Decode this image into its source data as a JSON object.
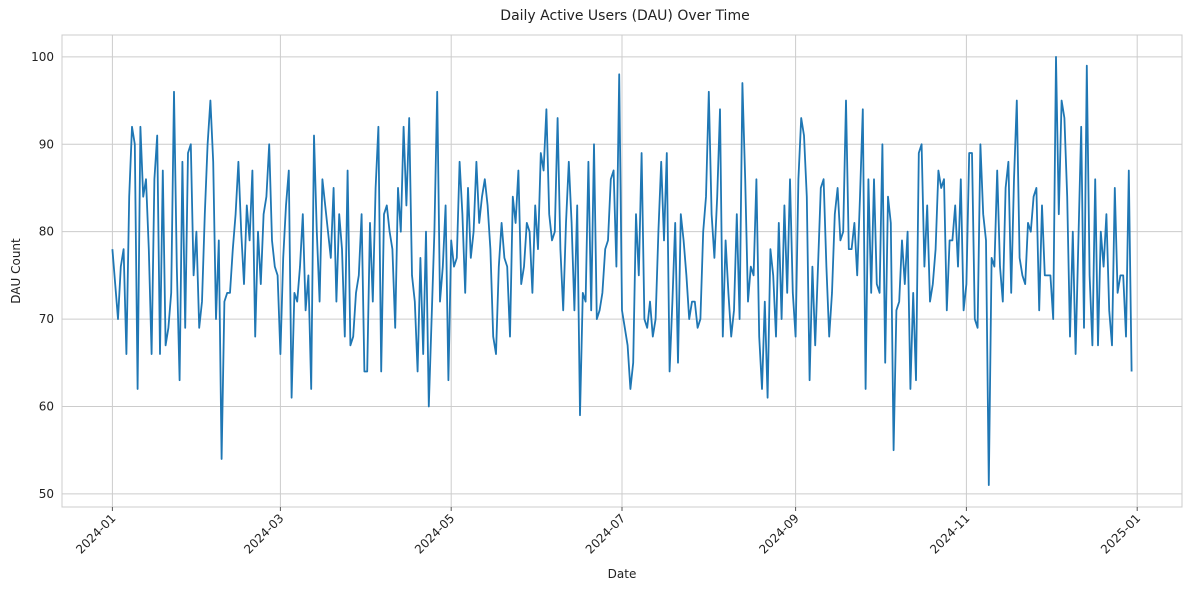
{
  "chart_data": {
    "type": "line",
    "title": "Daily Active Users (DAU) Over Time",
    "xlabel": "Date",
    "ylabel": "DAU Count",
    "x_start": "2024-01-01",
    "x_end": "2024-12-30",
    "xlim": [
      "2023-12-14",
      "2025-01-17"
    ],
    "ylim": [
      48.5,
      102.5
    ],
    "y_ticks": [
      50,
      60,
      70,
      80,
      90,
      100
    ],
    "x_ticks": [
      "2024-01",
      "2024-03",
      "2024-05",
      "2024-07",
      "2024-09",
      "2024-11",
      "2025-01"
    ],
    "grid": true,
    "line_color": "#1f77b4",
    "series": [
      {
        "values": [
          78,
          74,
          70,
          76,
          78,
          66,
          84,
          92,
          90,
          62,
          92,
          84,
          86,
          78,
          66,
          86,
          91,
          66,
          87,
          67,
          69,
          73,
          96,
          76,
          63,
          88,
          69,
          89,
          90,
          75,
          80,
          69,
          72,
          82,
          90,
          95,
          88,
          70,
          79,
          54,
          72,
          73,
          73,
          78,
          82,
          88,
          80,
          74,
          83,
          79,
          87,
          68,
          80,
          74,
          82,
          84,
          90,
          79,
          76,
          75,
          66,
          77,
          83,
          87,
          61,
          73,
          72,
          76,
          82,
          71,
          75,
          62,
          91,
          80,
          72,
          86,
          83,
          80,
          77,
          85,
          72,
          82,
          78,
          68,
          87,
          67,
          68,
          73,
          75,
          82,
          64,
          64,
          81,
          72,
          85,
          92,
          64,
          82,
          83,
          80,
          78,
          69,
          85,
          80,
          92,
          83,
          93,
          75,
          72,
          64,
          77,
          66,
          80,
          60,
          70,
          80,
          96,
          72,
          76,
          83,
          63,
          79,
          76,
          77,
          88,
          82,
          73,
          85,
          77,
          80,
          88,
          81,
          84,
          86,
          83,
          78,
          68,
          66,
          76,
          81,
          77,
          76,
          68,
          84,
          81,
          87,
          74,
          76,
          81,
          80,
          73,
          83,
          78,
          89,
          87,
          94,
          82,
          79,
          80,
          93,
          78,
          71,
          81,
          88,
          81,
          71,
          83,
          59,
          73,
          72,
          88,
          71,
          90,
          70,
          71,
          73,
          78,
          79,
          86,
          87,
          76,
          98,
          71,
          69,
          67,
          62,
          65,
          82,
          75,
          89,
          70,
          69,
          72,
          68,
          70,
          80,
          88,
          79,
          89,
          64,
          72,
          81,
          65,
          82,
          79,
          75,
          70,
          72,
          72,
          69,
          70,
          80,
          84,
          96,
          82,
          77,
          84,
          94,
          68,
          79,
          73,
          68,
          71,
          82,
          70,
          97,
          86,
          72,
          76,
          75,
          86,
          68,
          62,
          72,
          61,
          78,
          75,
          68,
          81,
          70,
          83,
          73,
          86,
          73,
          68,
          86,
          93,
          91,
          84,
          63,
          76,
          67,
          76,
          85,
          86,
          76,
          68,
          73,
          82,
          85,
          79,
          80,
          95,
          78,
          78,
          81,
          75,
          84,
          94,
          62,
          86,
          73,
          86,
          74,
          73,
          90,
          65,
          84,
          81,
          55,
          71,
          72,
          79,
          74,
          80,
          62,
          73,
          63,
          89,
          90,
          76,
          83,
          72,
          74,
          78,
          87,
          85,
          86,
          71,
          79,
          79,
          83,
          76,
          86,
          71,
          74,
          89,
          89,
          70,
          69,
          90,
          82,
          79,
          51,
          77,
          76,
          87,
          76,
          72,
          85,
          88,
          73,
          86,
          95,
          77,
          75,
          74,
          81,
          80,
          84,
          85,
          71,
          83,
          75,
          75,
          75,
          70,
          100,
          82,
          95,
          93,
          84,
          68,
          80,
          66,
          79,
          92,
          69,
          99,
          75,
          67,
          86,
          67,
          80,
          76,
          82,
          71,
          67,
          85,
          73,
          75,
          75,
          68,
          87,
          64
        ]
      }
    ]
  }
}
